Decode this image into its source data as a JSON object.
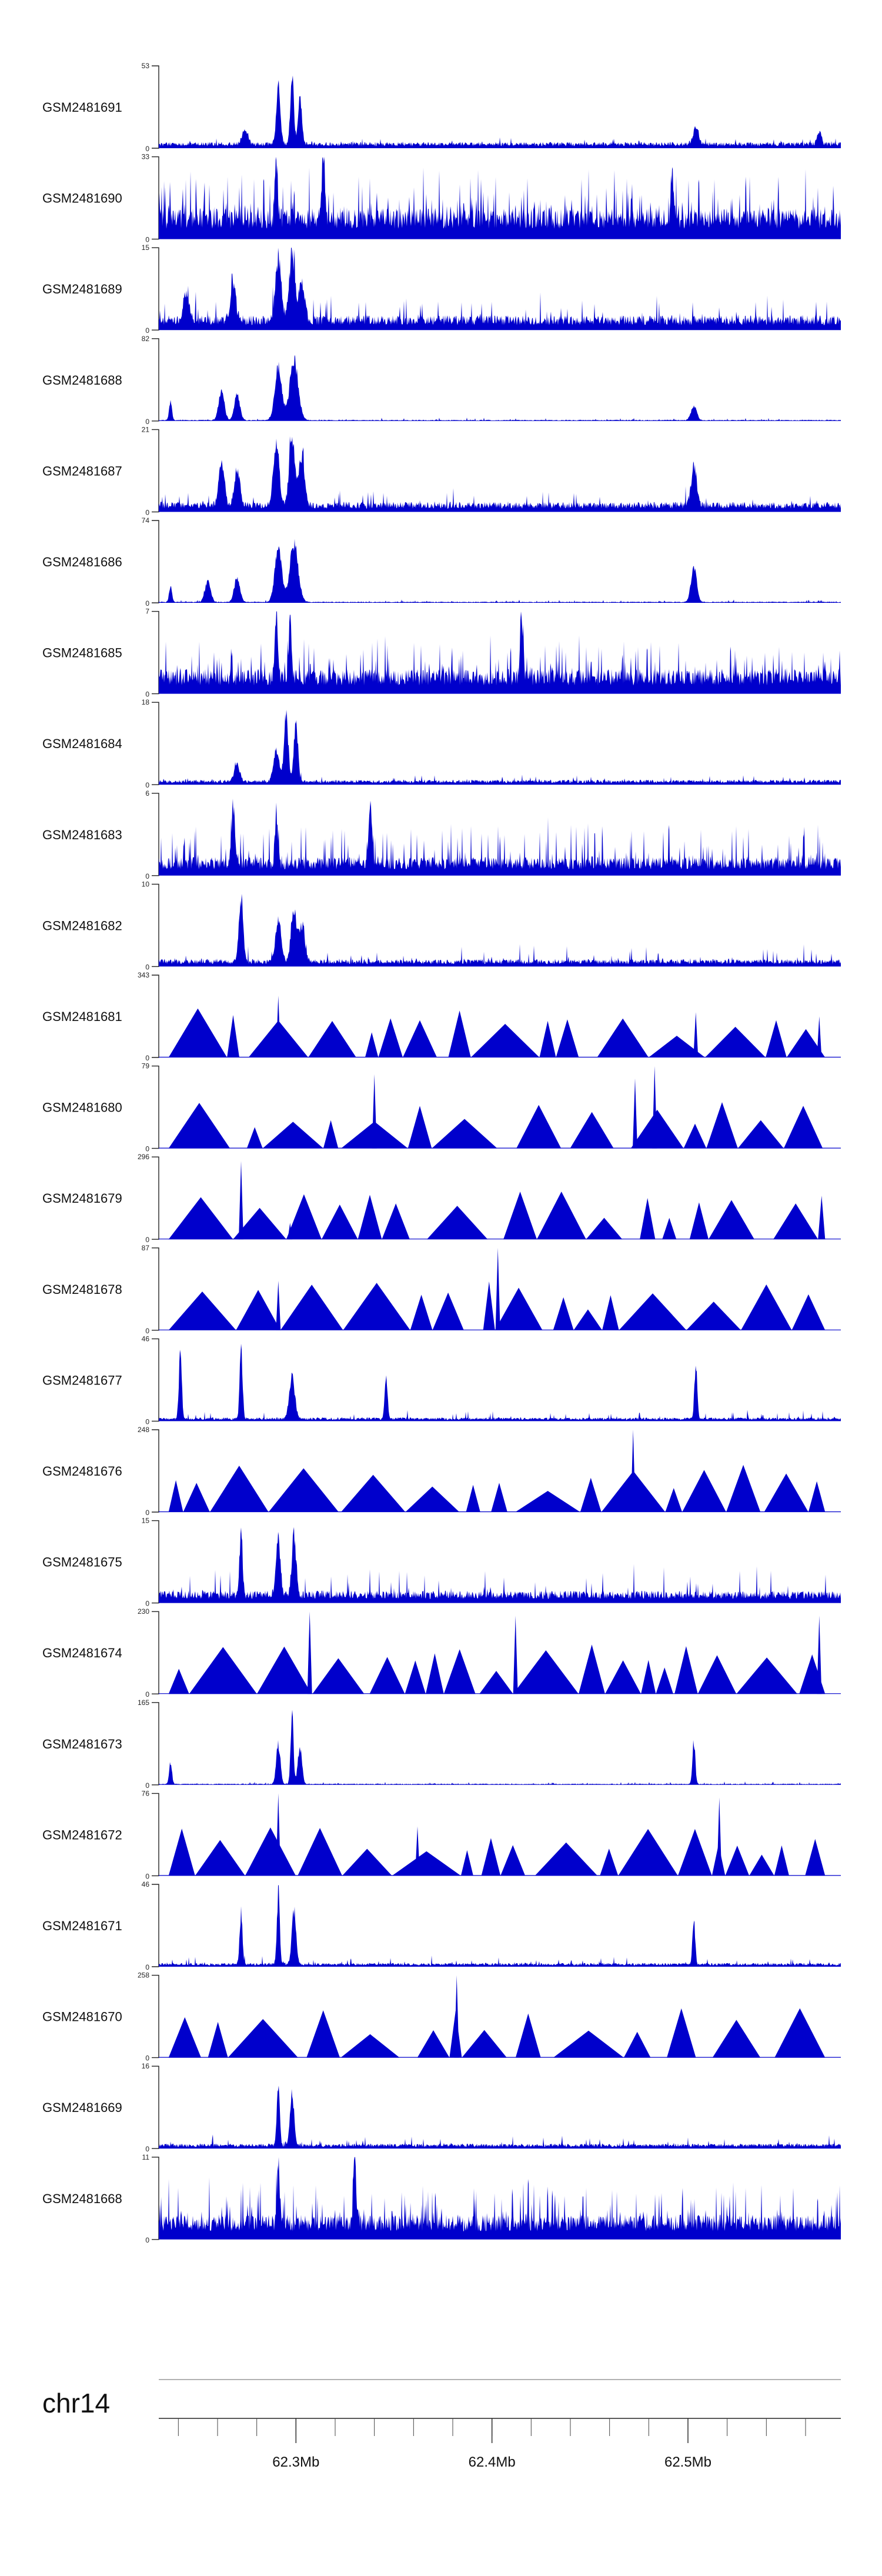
{
  "colors": {
    "signal": "#0000cc",
    "axis": "#222222",
    "ideogram": "#999999"
  },
  "chart_data": {
    "type": "area",
    "title": "",
    "chromosome": "chr14",
    "xlim_mb": [
      62.23,
      62.578
    ],
    "x_ticks": [
      {
        "value": 62.3,
        "label": "62.3Mb"
      },
      {
        "value": 62.4,
        "label": "62.4Mb"
      },
      {
        "value": 62.5,
        "label": "62.5Mb"
      }
    ],
    "tracks": [
      {
        "name": "GSM2481691",
        "ymax": 53,
        "ymax_label": "53",
        "ymin_label": "0",
        "style": "dense",
        "baseline": 0.05,
        "noise": 0.06,
        "peaks": [
          [
            62.274,
            0.2,
            0.002
          ],
          [
            62.291,
            0.78,
            0.0015
          ],
          [
            62.298,
            1.0,
            0.0012
          ],
          [
            62.302,
            0.65,
            0.0014
          ],
          [
            62.504,
            0.25,
            0.002
          ],
          [
            62.567,
            0.18,
            0.0015
          ]
        ]
      },
      {
        "name": "GSM2481690",
        "ymax": 33,
        "ymax_label": "33",
        "ymin_label": "0",
        "style": "spiky",
        "baseline": 0.25,
        "noise": 0.55,
        "peaks": [
          [
            62.29,
            0.85,
            0.001
          ],
          [
            62.314,
            0.95,
            0.001
          ],
          [
            62.492,
            0.65,
            0.001
          ]
        ]
      },
      {
        "name": "GSM2481689",
        "ymax": 15,
        "ymax_label": "15",
        "ymin_label": "0",
        "style": "dense",
        "baseline": 0.12,
        "noise": 0.35,
        "peaks": [
          [
            62.291,
            0.85,
            0.002
          ],
          [
            62.298,
            0.95,
            0.002
          ],
          [
            62.303,
            0.55,
            0.002
          ],
          [
            62.244,
            0.4,
            0.002
          ],
          [
            62.268,
            0.45,
            0.002
          ]
        ]
      },
      {
        "name": "GSM2481688",
        "ymax": 82,
        "ymax_label": "82",
        "ymin_label": "0",
        "style": "dense",
        "baseline": 0.01,
        "noise": 0.03,
        "peaks": [
          [
            62.236,
            0.25,
            0.001
          ],
          [
            62.262,
            0.4,
            0.002
          ],
          [
            62.27,
            0.35,
            0.002
          ],
          [
            62.291,
            0.75,
            0.0025
          ],
          [
            62.299,
            0.85,
            0.003
          ],
          [
            62.503,
            0.2,
            0.002
          ]
        ]
      },
      {
        "name": "GSM2481687",
        "ymax": 21,
        "ymax_label": "21",
        "ymin_label": "0",
        "style": "dense",
        "baseline": 0.08,
        "noise": 0.2,
        "peaks": [
          [
            62.262,
            0.6,
            0.002
          ],
          [
            62.27,
            0.5,
            0.002
          ],
          [
            62.29,
            0.9,
            0.002
          ],
          [
            62.298,
            1.0,
            0.002
          ],
          [
            62.303,
            0.7,
            0.002
          ],
          [
            62.503,
            0.55,
            0.002
          ]
        ]
      },
      {
        "name": "GSM2481686",
        "ymax": 74,
        "ymax_label": "74",
        "ymin_label": "0",
        "style": "dense",
        "baseline": 0.01,
        "noise": 0.03,
        "peaks": [
          [
            62.236,
            0.22,
            0.001
          ],
          [
            62.255,
            0.3,
            0.002
          ],
          [
            62.27,
            0.35,
            0.002
          ],
          [
            62.291,
            0.75,
            0.0025
          ],
          [
            62.299,
            0.8,
            0.003
          ],
          [
            62.503,
            0.5,
            0.002
          ]
        ]
      },
      {
        "name": "GSM2481685",
        "ymax": 7,
        "ymax_label": "7",
        "ymin_label": "0",
        "style": "spiky",
        "baseline": 0.2,
        "noise": 0.45,
        "peaks": [
          [
            62.29,
            0.95,
            0.001
          ],
          [
            62.297,
            0.8,
            0.001
          ],
          [
            62.415,
            0.9,
            0.001
          ]
        ]
      },
      {
        "name": "GSM2481684",
        "ymax": 18,
        "ymax_label": "18",
        "ymin_label": "0",
        "style": "dense",
        "baseline": 0.04,
        "noise": 0.08,
        "peaks": [
          [
            62.27,
            0.25,
            0.002
          ],
          [
            62.29,
            0.45,
            0.002
          ],
          [
            62.295,
            0.9,
            0.0015
          ],
          [
            62.3,
            0.8,
            0.0015
          ]
        ]
      },
      {
        "name": "GSM2481683",
        "ymax": 6,
        "ymax_label": "6",
        "ymin_label": "0",
        "style": "spiky",
        "baseline": 0.15,
        "noise": 0.5,
        "peaks": [
          [
            62.268,
            0.85,
            0.001
          ],
          [
            62.29,
            0.7,
            0.001
          ],
          [
            62.338,
            0.95,
            0.001
          ]
        ]
      },
      {
        "name": "GSM2481682",
        "ymax": 10,
        "ymax_label": "10",
        "ymin_label": "0",
        "style": "dense",
        "baseline": 0.06,
        "noise": 0.2,
        "peaks": [
          [
            62.272,
            0.9,
            0.0015
          ],
          [
            62.291,
            0.6,
            0.002
          ],
          [
            62.299,
            0.7,
            0.002
          ],
          [
            62.303,
            0.5,
            0.002
          ]
        ]
      },
      {
        "name": "GSM2481681",
        "ymax": 343,
        "ymax_label": "343",
        "ymin_label": "0",
        "style": "triangles",
        "seed": 11,
        "spikes": [
          [
            62.291,
            0.75
          ],
          [
            62.297,
            0.25
          ],
          [
            62.504,
            0.55
          ],
          [
            62.567,
            0.5
          ]
        ]
      },
      {
        "name": "GSM2481680",
        "ymax": 79,
        "ymax_label": "79",
        "ymin_label": "0",
        "style": "triangles",
        "seed": 12,
        "spikes": [
          [
            62.34,
            0.9
          ],
          [
            62.483,
            1.0
          ],
          [
            62.473,
            0.85
          ]
        ]
      },
      {
        "name": "GSM2481679",
        "ymax": 296,
        "ymax_label": "296",
        "ymin_label": "0",
        "style": "triangles",
        "seed": 13,
        "spikes": [
          [
            62.272,
            0.95
          ],
          [
            62.297,
            0.2
          ]
        ]
      },
      {
        "name": "GSM2481678",
        "ymax": 87,
        "ymax_label": "87",
        "ymin_label": "0",
        "style": "triangles",
        "seed": 14,
        "spikes": [
          [
            62.403,
            1.0
          ],
          [
            62.291,
            0.6
          ]
        ]
      },
      {
        "name": "GSM2481677",
        "ymax": 46,
        "ymax_label": "46",
        "ymin_label": "0",
        "style": "dense",
        "baseline": 0.03,
        "noise": 0.1,
        "peaks": [
          [
            62.241,
            0.95,
            0.001
          ],
          [
            62.272,
            0.95,
            0.001
          ],
          [
            62.298,
            0.6,
            0.002
          ],
          [
            62.346,
            0.6,
            0.001
          ],
          [
            62.504,
            0.75,
            0.001
          ]
        ]
      },
      {
        "name": "GSM2481676",
        "ymax": 248,
        "ymax_label": "248",
        "ymin_label": "0",
        "style": "triangles",
        "seed": 16,
        "spikes": [
          [
            62.472,
            1.0
          ]
        ]
      },
      {
        "name": "GSM2481675",
        "ymax": 15,
        "ymax_label": "15",
        "ymin_label": "0",
        "style": "dense",
        "baseline": 0.1,
        "noise": 0.35,
        "peaks": [
          [
            62.272,
            1.0,
            0.001
          ],
          [
            62.291,
            0.8,
            0.0015
          ],
          [
            62.299,
            0.85,
            0.0015
          ]
        ]
      },
      {
        "name": "GSM2481674",
        "ymax": 230,
        "ymax_label": "230",
        "ymin_label": "0",
        "style": "triangles",
        "seed": 18,
        "spikes": [
          [
            62.307,
            1.0
          ],
          [
            62.412,
            0.95
          ],
          [
            62.567,
            0.95
          ]
        ]
      },
      {
        "name": "GSM2481673",
        "ymax": 165,
        "ymax_label": "165",
        "ymin_label": "0",
        "style": "dense",
        "baseline": 0.01,
        "noise": 0.03,
        "peaks": [
          [
            62.236,
            0.3,
            0.001
          ],
          [
            62.291,
            0.55,
            0.0015
          ],
          [
            62.298,
            1.0,
            0.001
          ],
          [
            62.302,
            0.5,
            0.0015
          ],
          [
            62.503,
            0.6,
            0.001
          ]
        ]
      },
      {
        "name": "GSM2481672",
        "ymax": 76,
        "ymax_label": "76",
        "ymin_label": "0",
        "style": "triangles",
        "seed": 20,
        "spikes": [
          [
            62.291,
            1.0
          ],
          [
            62.516,
            0.95
          ],
          [
            62.362,
            0.6
          ]
        ]
      },
      {
        "name": "GSM2481671",
        "ymax": 46,
        "ymax_label": "46",
        "ymin_label": "0",
        "style": "dense",
        "baseline": 0.03,
        "noise": 0.1,
        "peaks": [
          [
            62.272,
            0.7,
            0.001
          ],
          [
            62.291,
            1.0,
            0.001
          ],
          [
            62.299,
            0.75,
            0.0015
          ],
          [
            62.503,
            0.6,
            0.001
          ]
        ]
      },
      {
        "name": "GSM2481670",
        "ymax": 258,
        "ymax_label": "258",
        "ymin_label": "0",
        "style": "triangles",
        "seed": 22,
        "spikes": [
          [
            62.382,
            1.0
          ]
        ]
      },
      {
        "name": "GSM2481669",
        "ymax": 16,
        "ymax_label": "16",
        "ymin_label": "0",
        "style": "dense",
        "baseline": 0.04,
        "noise": 0.12,
        "peaks": [
          [
            62.291,
            0.9,
            0.001
          ],
          [
            62.298,
            0.7,
            0.0015
          ]
        ]
      },
      {
        "name": "GSM2481668",
        "ymax": 11,
        "ymax_label": "11",
        "ymin_label": "0",
        "style": "spiky",
        "baseline": 0.2,
        "noise": 0.5,
        "peaks": [
          [
            62.33,
            1.0,
            0.001
          ],
          [
            62.291,
            0.8,
            0.001
          ]
        ]
      }
    ]
  }
}
